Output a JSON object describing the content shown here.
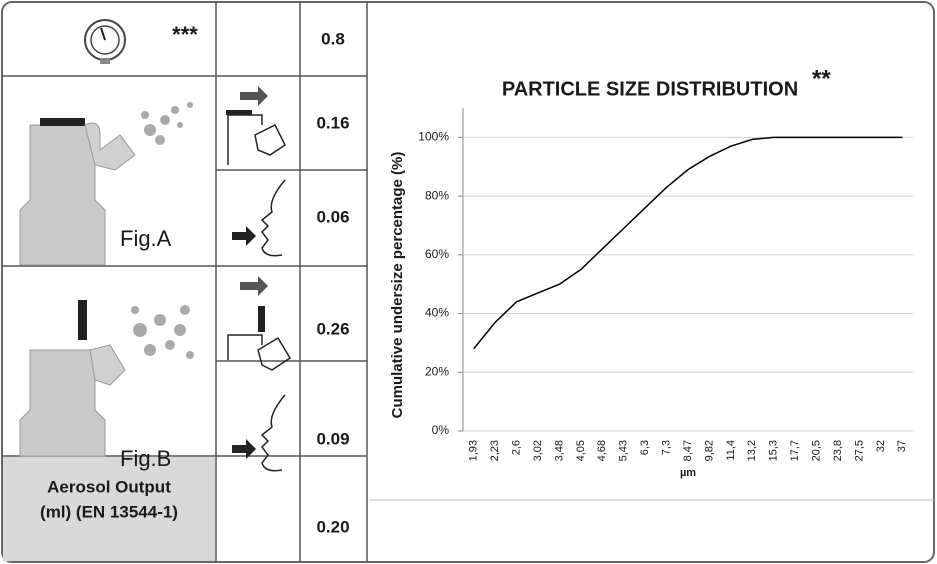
{
  "table": {
    "header_symbol": "***",
    "fig_a": "Fig.A",
    "fig_b": "Fig.B",
    "footer_label": [
      "Aerosol Output",
      "(ml) (EN 13544-1)"
    ],
    "values": [
      "0.8",
      "0.16",
      "0.06",
      "0.26",
      "0.09",
      "0.20"
    ]
  },
  "chart_data": {
    "type": "line",
    "title": "PARTICLE SIZE DISTRIBUTION",
    "title_note": "**",
    "x_label": "µm",
    "y_label": "Cumulative undersize percentage (%)",
    "categories": [
      "1,93",
      "2,23",
      "2,6",
      "3,02",
      "3,48",
      "4,05",
      "4,68",
      "5,43",
      "6,3",
      "7,3",
      "8,47",
      "9,82",
      "11,4",
      "13,2",
      "15,3",
      "17,7",
      "20,5",
      "23,8",
      "27,5",
      "32",
      "37"
    ],
    "values": [
      28,
      37,
      44,
      47,
      50,
      55,
      62,
      69,
      76,
      83,
      89,
      93.5,
      97,
      99.3,
      100,
      100,
      100,
      100,
      100,
      100,
      100
    ],
    "color": "#000000",
    "ylim": [
      0,
      110
    ],
    "yticks": [
      {
        "value": 0,
        "label": "0%"
      },
      {
        "value": 20,
        "label": "20%"
      },
      {
        "value": 40,
        "label": "40%"
      },
      {
        "value": 60,
        "label": "60%"
      },
      {
        "value": 80,
        "label": "80%"
      },
      {
        "value": 100,
        "label": "100%"
      }
    ],
    "grid": true
  }
}
